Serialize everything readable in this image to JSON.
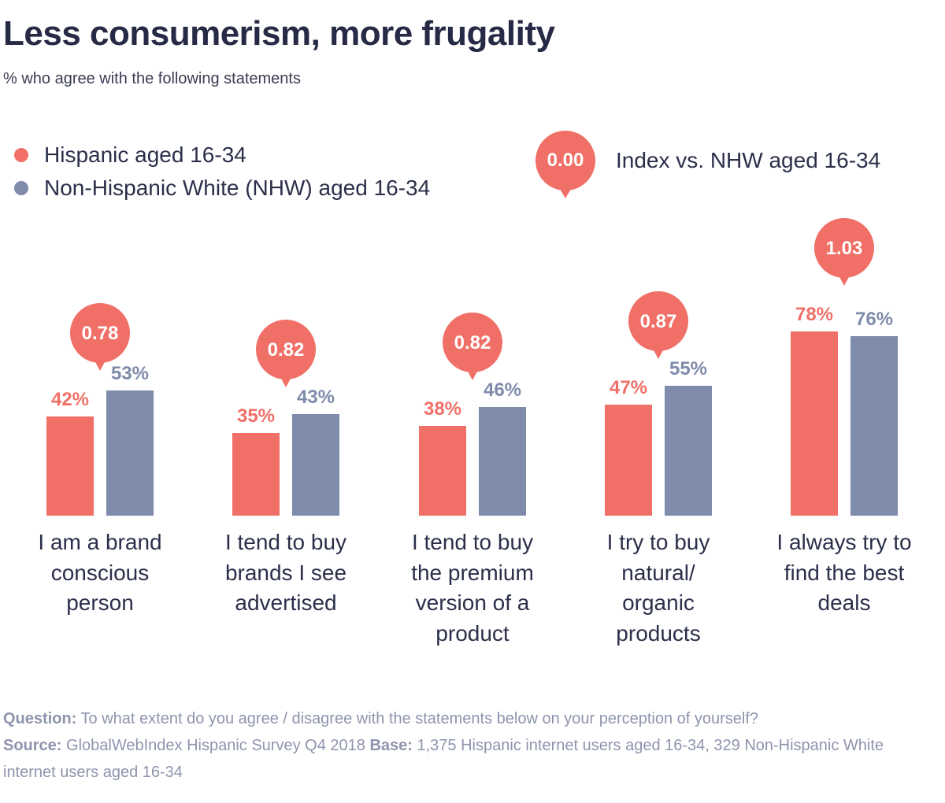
{
  "header": {
    "title": "Less consumerism, more frugality",
    "subtitle": "% who agree with the following statements"
  },
  "legend": {
    "series_a": "Hispanic aged 16-34",
    "series_b": "Non-Hispanic White (NHW) aged 16-34",
    "index_value": "0.00",
    "index_label": "Index vs. NHW aged 16-34"
  },
  "colors": {
    "series_a": "#f07068",
    "series_b": "#7f8bab",
    "bubble": "#f07068"
  },
  "footer": {
    "question_label": "Question:",
    "question_text": "To what extent do you agree / disagree with the statements below on your perception of yourself?",
    "source_label": "Source:",
    "source_text": "GlobalWebIndex Hispanic Survey Q4 2018",
    "base_label": "Base:",
    "base_text": "1,375 Hispanic internet users aged 16-34, 329 Non-Hispanic White internet users aged 16-34"
  },
  "chart_data": {
    "type": "bar",
    "categories": [
      "I am a brand conscious person",
      "I tend to buy brands I see advertised",
      "I tend to buy the premium version of a product",
      "I try to buy natural/ organic products",
      "I always try to find the best deals"
    ],
    "category_lines": [
      [
        "I am a brand",
        "conscious",
        "person"
      ],
      [
        "I tend to buy",
        "brands I see",
        "advertised"
      ],
      [
        "I tend to buy",
        "the premium",
        "version of a",
        "product"
      ],
      [
        "I try to buy",
        "natural/",
        "organic",
        "products"
      ],
      [
        "I always try to",
        "find the best",
        "deals"
      ]
    ],
    "series": [
      {
        "name": "Hispanic aged 16-34",
        "values": [
          42,
          35,
          38,
          47,
          78
        ]
      },
      {
        "name": "Non-Hispanic White (NHW) aged 16-34",
        "values": [
          53,
          43,
          46,
          55,
          76
        ]
      }
    ],
    "value_labels": [
      [
        "42%",
        "35%",
        "38%",
        "47%",
        "78%"
      ],
      [
        "53%",
        "43%",
        "46%",
        "55%",
        "76%"
      ]
    ],
    "index": {
      "name": "Index vs. NHW aged 16-34",
      "values": [
        "0.78",
        "0.82",
        "0.82",
        "0.87",
        "1.03"
      ]
    },
    "ylim": [
      0,
      100
    ],
    "grid": false,
    "legend_position": "top-left"
  }
}
